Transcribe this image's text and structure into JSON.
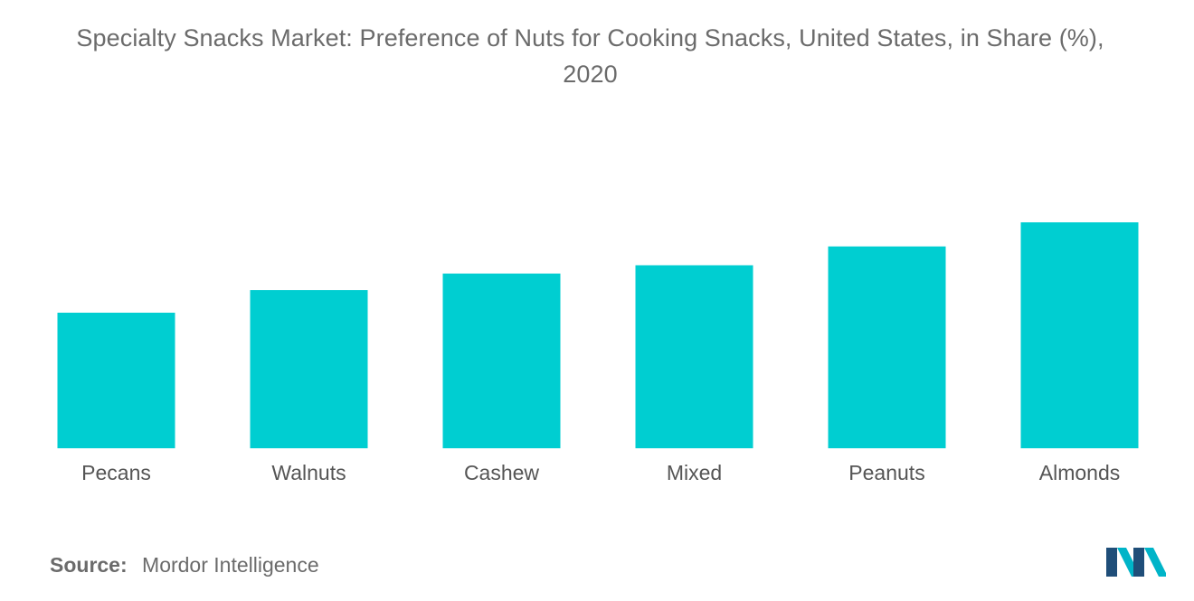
{
  "chart_data": {
    "type": "bar",
    "title_line1": "Specialty Snacks Market: Preference of Nuts for Cooking Snacks, United States, in Share (%),",
    "title_line2": "2020",
    "categories": [
      "Pecans",
      "Walnuts",
      "Cashew",
      "Mixed",
      "Peanuts",
      "Almonds"
    ],
    "values": [
      18,
      21,
      23.2,
      24.3,
      26.8,
      30
    ],
    "ylim": [
      0,
      36
    ],
    "y_axis_shown": false,
    "grid": false,
    "bar_color": "#00CED1"
  },
  "source": {
    "label": "Source:",
    "text": "Mordor Intelligence"
  },
  "logo": {
    "icon": "mordor-intelligence-logo",
    "colors": [
      "#1f4e79",
      "#00b4c8"
    ]
  }
}
